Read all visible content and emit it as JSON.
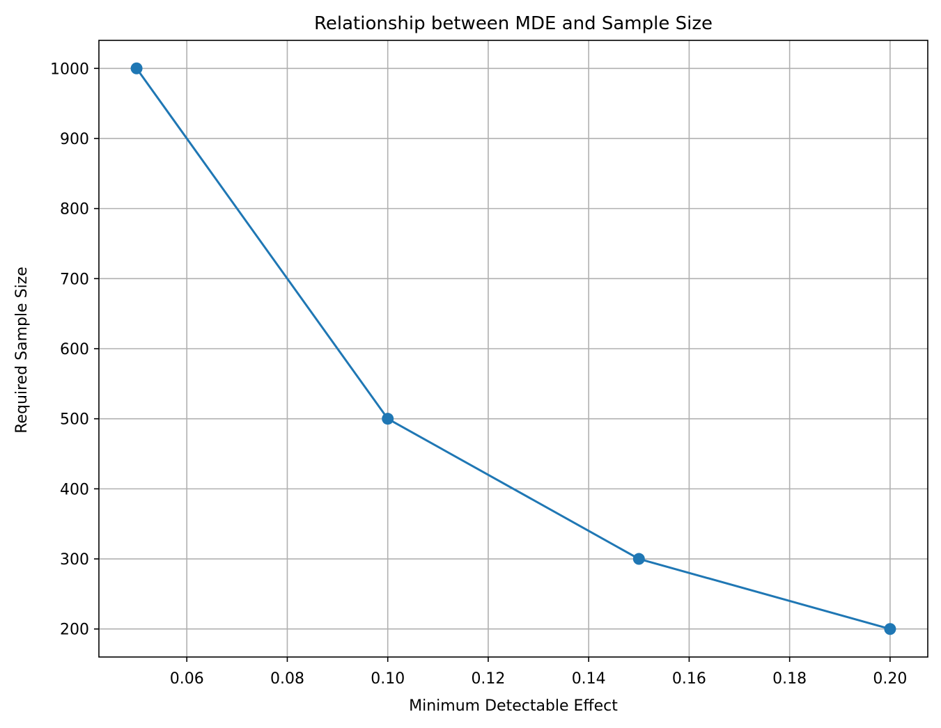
{
  "chart_data": {
    "type": "line",
    "title": "Relationship between MDE and Sample Size",
    "xlabel": "Minimum Detectable Effect",
    "ylabel": "Required Sample Size",
    "x": [
      0.05,
      0.1,
      0.15,
      0.2
    ],
    "series": [
      {
        "values": [
          1000,
          500,
          300,
          200
        ]
      }
    ],
    "xlim": [
      0.0425,
      0.2075
    ],
    "ylim": [
      160,
      1040
    ],
    "xticks": [
      "0.06",
      "0.08",
      "0.10",
      "0.12",
      "0.14",
      "0.16",
      "0.18",
      "0.20"
    ],
    "yticks": [
      "200",
      "300",
      "400",
      "500",
      "600",
      "700",
      "800",
      "900",
      "1000"
    ],
    "grid": true,
    "marker": "circle",
    "colors": {
      "line": "#1f77b4",
      "grid": "#b0b0b0",
      "axes": "#000000"
    }
  }
}
